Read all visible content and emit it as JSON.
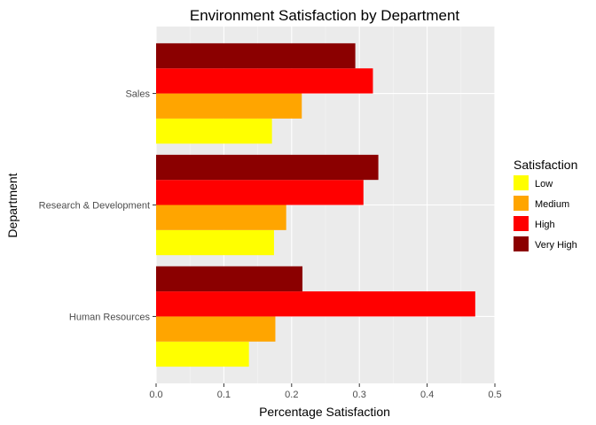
{
  "chart_data": {
    "type": "bar",
    "orientation": "horizontal",
    "title": "Environment Satisfaction by Department",
    "xlabel": "Percentage Satisfaction",
    "ylabel": "Department",
    "xlim": [
      0,
      0.5
    ],
    "x_ticks": [
      "0.0",
      "0.1",
      "0.2",
      "0.3",
      "0.4",
      "0.5"
    ],
    "grid": true,
    "categories": [
      "Human Resources",
      "Research & Development",
      "Sales"
    ],
    "legend": {
      "title": "Satisfaction",
      "position": "right"
    },
    "series": [
      {
        "name": "Low",
        "color": "#ffff00",
        "values": [
          0.137,
          0.174,
          0.171
        ]
      },
      {
        "name": "Medium",
        "color": "#ffa500",
        "values": [
          0.176,
          0.192,
          0.215
        ]
      },
      {
        "name": "High",
        "color": "#ff0000",
        "values": [
          0.471,
          0.306,
          0.32
        ]
      },
      {
        "name": "Very High",
        "color": "#8b0000",
        "values": [
          0.216,
          0.328,
          0.294
        ]
      }
    ]
  }
}
